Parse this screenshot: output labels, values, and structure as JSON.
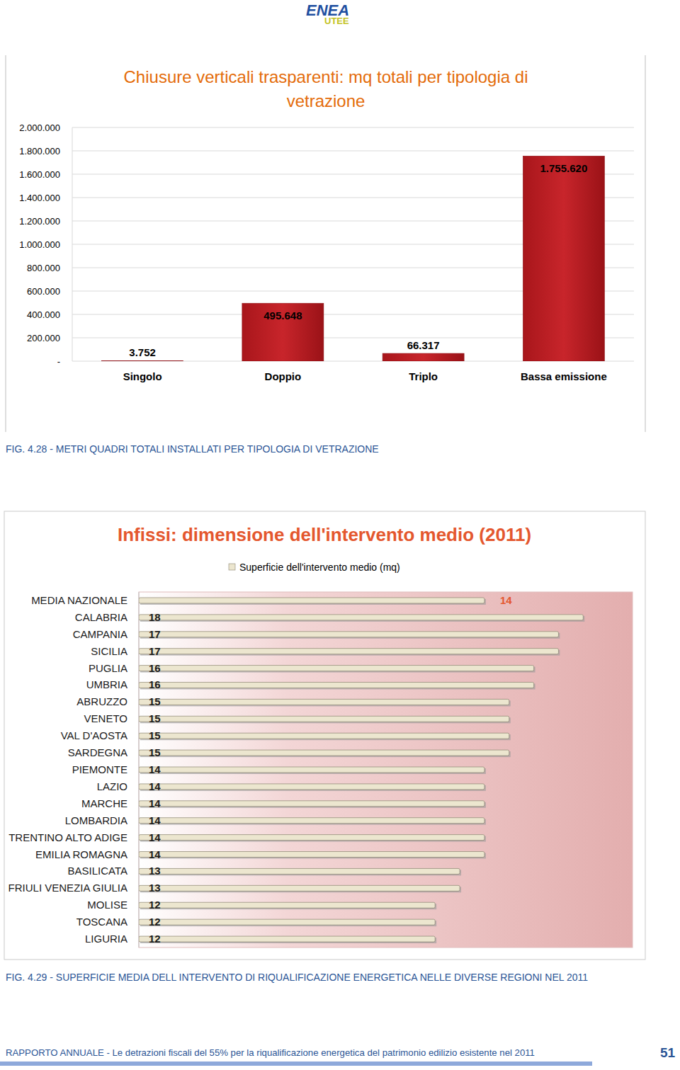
{
  "header": {
    "logo": [
      "ENEA",
      "UTEE"
    ]
  },
  "chart_data": [
    {
      "type": "bar",
      "title": "Chiusure verticali trasparenti: mq totali per tipologia di vetrazione",
      "categories": [
        "Singolo",
        "Doppio",
        "Triplo",
        "Bassa emissione"
      ],
      "values": [
        3752,
        495648,
        66317,
        1755620
      ],
      "value_labels": [
        "3.752",
        "495.648",
        "66.317",
        "1.755.620"
      ],
      "data_labels": true,
      "color": "#c8252b",
      "ylim": [
        0,
        2000000
      ],
      "yticks": [
        {
          "value": 0,
          "label": "-"
        },
        {
          "value": 200000,
          "label": "200.000"
        },
        {
          "value": 400000,
          "label": "400.000"
        },
        {
          "value": 600000,
          "label": "600.000"
        },
        {
          "value": 800000,
          "label": "800.000"
        },
        {
          "value": 1000000,
          "label": "1.000.000"
        },
        {
          "value": 1200000,
          "label": "1.200.000"
        },
        {
          "value": 1400000,
          "label": "1.400.000"
        },
        {
          "value": 1600000,
          "label": "1.600.000"
        },
        {
          "value": 1800000,
          "label": "1.800.000"
        },
        {
          "value": 2000000,
          "label": "2.000.000"
        }
      ],
      "grid": true
    },
    {
      "type": "bar",
      "orientation": "horizontal",
      "title": "Infissi: dimensione dell'intervento medio (2011)",
      "categories": [
        "MEDIA NAZIONALE",
        "CALABRIA",
        "CAMPANIA",
        "SICILIA",
        "PUGLIA",
        "UMBRIA",
        "ABRUZZO",
        "VENETO",
        "VAL D'AOSTA",
        "SARDEGNA",
        "PIEMONTE",
        "LAZIO",
        "MARCHE",
        "LOMBARDIA",
        "TRENTINO ALTO ADIGE",
        "EMILIA ROMAGNA",
        "BASILICATA",
        "FRIULI VENEZIA GIULIA",
        "MOLISE",
        "TOSCANA",
        "LIGURIA"
      ],
      "series": [
        {
          "name": "Superficie dell'intervento medio (mq)",
          "color": "#ece6cf",
          "values": [
            14,
            18,
            17,
            17,
            16,
            16,
            15,
            15,
            15,
            15,
            14,
            14,
            14,
            14,
            14,
            14,
            13,
            13,
            12,
            12,
            12
          ]
        }
      ],
      "xlim": [
        0,
        20
      ],
      "tick_labels": false,
      "data_labels": true,
      "legend": "top",
      "grid": false
    }
  ],
  "captions": [
    "FIG. 4.28 - METRI QUADRI TOTALI INSTALLATI PER TIPOLOGIA DI VETRAZIONE",
    "FIG. 4.29 - SUPERFICIE MEDIA DELL INTERVENTO DI RIQUALIFICAZIONE ENERGETICA NELLE DIVERSE REGIONI NEL 2011"
  ],
  "footer": {
    "text": "RAPPORTO ANNUALE - Le detrazioni fiscali del 55% per la riqualificazione energetica del patrimonio edilizio esistente nel 2011",
    "page": 51
  }
}
